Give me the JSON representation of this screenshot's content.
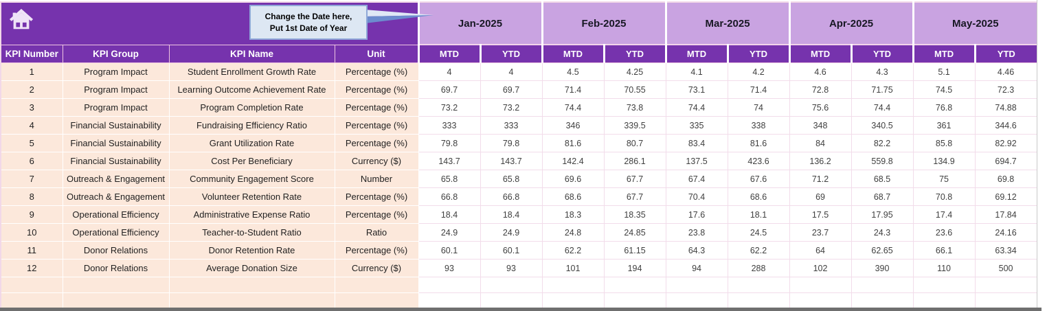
{
  "banner": {
    "home_icon": "home-icon",
    "callout": {
      "line1": "Change the Date here,",
      "line2": "Put 1st Date of Year"
    }
  },
  "months": [
    "Jan-2025",
    "Feb-2025",
    "Mar-2025",
    "Apr-2025",
    "May-2025"
  ],
  "subheaders": [
    "MTD",
    "YTD"
  ],
  "columns": [
    "KPI Number",
    "KPI Group",
    "KPI Name",
    "Unit"
  ],
  "rows": [
    {
      "number": "1",
      "group": "Program Impact",
      "name": "Student Enrollment Growth Rate",
      "unit": "Percentage (%)",
      "values": [
        "4",
        "4",
        "4.5",
        "4.25",
        "4.1",
        "4.2",
        "4.6",
        "4.3",
        "5.1",
        "4.46"
      ]
    },
    {
      "number": "2",
      "group": "Program Impact",
      "name": "Learning Outcome Achievement Rate",
      "unit": "Percentage (%)",
      "values": [
        "69.7",
        "69.7",
        "71.4",
        "70.55",
        "73.1",
        "71.4",
        "72.8",
        "71.75",
        "74.5",
        "72.3"
      ]
    },
    {
      "number": "3",
      "group": "Program Impact",
      "name": "Program Completion Rate",
      "unit": "Percentage (%)",
      "values": [
        "73.2",
        "73.2",
        "74.4",
        "73.8",
        "74.4",
        "74",
        "75.6",
        "74.4",
        "76.8",
        "74.88"
      ]
    },
    {
      "number": "4",
      "group": "Financial Sustainability",
      "name": "Fundraising Efficiency Ratio",
      "unit": "Percentage (%)",
      "values": [
        "333",
        "333",
        "346",
        "339.5",
        "335",
        "338",
        "348",
        "340.5",
        "361",
        "344.6"
      ]
    },
    {
      "number": "5",
      "group": "Financial Sustainability",
      "name": "Grant Utilization Rate",
      "unit": "Percentage (%)",
      "values": [
        "79.8",
        "79.8",
        "81.6",
        "80.7",
        "83.4",
        "81.6",
        "84",
        "82.2",
        "85.8",
        "82.92"
      ]
    },
    {
      "number": "6",
      "group": "Financial Sustainability",
      "name": "Cost Per Beneficiary",
      "unit": "Currency ($)",
      "values": [
        "143.7",
        "143.7",
        "142.4",
        "286.1",
        "137.5",
        "423.6",
        "136.2",
        "559.8",
        "134.9",
        "694.7"
      ]
    },
    {
      "number": "7",
      "group": "Outreach & Engagement",
      "name": "Community Engagement Score",
      "unit": "Number",
      "values": [
        "65.8",
        "65.8",
        "69.6",
        "67.7",
        "67.4",
        "67.6",
        "71.2",
        "68.5",
        "75",
        "69.8"
      ]
    },
    {
      "number": "8",
      "group": "Outreach & Engagement",
      "name": "Volunteer Retention Rate",
      "unit": "Percentage (%)",
      "values": [
        "66.8",
        "66.8",
        "68.6",
        "67.7",
        "70.4",
        "68.6",
        "69",
        "68.7",
        "70.8",
        "69.12"
      ]
    },
    {
      "number": "9",
      "group": "Operational Efficiency",
      "name": "Administrative Expense Ratio",
      "unit": "Percentage (%)",
      "values": [
        "18.4",
        "18.4",
        "18.3",
        "18.35",
        "17.6",
        "18.1",
        "17.5",
        "17.95",
        "17.4",
        "17.84"
      ]
    },
    {
      "number": "10",
      "group": "Operational Efficiency",
      "name": "Teacher-to-Student Ratio",
      "unit": "Ratio",
      "values": [
        "24.9",
        "24.9",
        "24.8",
        "24.85",
        "23.8",
        "24.5",
        "23.7",
        "24.3",
        "23.6",
        "24.16"
      ]
    },
    {
      "number": "11",
      "group": "Donor Relations",
      "name": "Donor Retention Rate",
      "unit": "Percentage (%)",
      "values": [
        "60.1",
        "60.1",
        "62.2",
        "61.15",
        "64.3",
        "62.2",
        "64",
        "62.65",
        "66.1",
        "63.34"
      ]
    },
    {
      "number": "12",
      "group": "Donor Relations",
      "name": "Average Donation Size",
      "unit": "Currency ($)",
      "values": [
        "93",
        "93",
        "101",
        "194",
        "94",
        "288",
        "102",
        "390",
        "110",
        "500"
      ]
    }
  ],
  "empty_row_count": 2,
  "colors": {
    "header_purple": "#7633ad",
    "month_light_purple": "#c9a3e1",
    "left_columns_peach": "#fce8db",
    "data_grid_line": "#f2dcea",
    "callout_fill": "#dde7f3",
    "callout_border": "#8fa8d8",
    "bottom_bar": "#6f6f6f"
  }
}
